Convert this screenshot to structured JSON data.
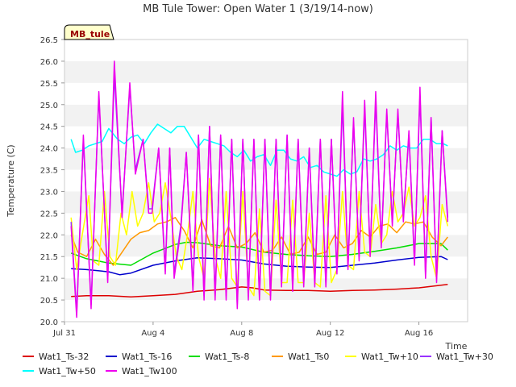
{
  "chart_data": {
    "type": "line",
    "title": "MB Tule Tower: Open Water 1 (3/19/14-now)",
    "xlabel": "Time",
    "ylabel": "Temperature (C)",
    "ylim": [
      20.0,
      26.5
    ],
    "xlim": [
      0,
      18.2
    ],
    "x_unit": "days since Jul 31",
    "x_ticks": [
      0,
      4,
      8,
      12,
      16
    ],
    "x_tick_labels": [
      "Jul 31",
      "Aug 4",
      "Aug 8",
      "Aug 12",
      "Aug 16"
    ],
    "y_ticks": [
      20.0,
      20.5,
      21.0,
      21.5,
      22.0,
      22.5,
      23.0,
      23.5,
      24.0,
      24.5,
      25.0,
      25.5,
      26.0,
      26.5
    ],
    "y_tick_labels": [
      "20.0",
      "20.5",
      "21.0",
      "21.5",
      "22.0",
      "22.5",
      "23.0",
      "23.5",
      "24.0",
      "24.5",
      "25.0",
      "25.5",
      "26.0",
      "26.5"
    ],
    "annotation": "MB_tule",
    "grid": "horizontal alternating bands",
    "legend_position": "bottom",
    "series": [
      {
        "name": "Wat1_Ts-32",
        "color": "#dd0000",
        "x": [
          0.3,
          1,
          2,
          3,
          4,
          5,
          6,
          7,
          8,
          8.5,
          9,
          10,
          11,
          12,
          13,
          14,
          15,
          16,
          17,
          17.3
        ],
        "y": [
          20.58,
          20.6,
          20.6,
          20.57,
          20.6,
          20.63,
          20.7,
          20.74,
          20.8,
          20.78,
          20.73,
          20.72,
          20.72,
          20.7,
          20.72,
          20.73,
          20.75,
          20.78,
          20.84,
          20.86
        ]
      },
      {
        "name": "Wat1_Ts-16",
        "color": "#0000cc",
        "x": [
          0.3,
          1,
          2,
          2.5,
          3,
          4,
          5,
          6,
          7,
          8,
          9,
          10,
          11,
          12,
          13,
          14,
          15,
          16,
          17,
          17.3
        ],
        "y": [
          21.22,
          21.2,
          21.15,
          21.08,
          21.12,
          21.3,
          21.4,
          21.47,
          21.45,
          21.42,
          21.33,
          21.28,
          21.26,
          21.25,
          21.3,
          21.35,
          21.42,
          21.48,
          21.5,
          21.43
        ]
      },
      {
        "name": "Wat1_Ts-8",
        "color": "#00dd00",
        "x": [
          0.3,
          1,
          2,
          3,
          4,
          5,
          5.5,
          6,
          7,
          8,
          9,
          10,
          11,
          12,
          13,
          14,
          15,
          16,
          17,
          17.3
        ],
        "y": [
          21.58,
          21.45,
          21.35,
          21.3,
          21.58,
          21.78,
          21.83,
          21.82,
          21.75,
          21.72,
          21.6,
          21.55,
          21.52,
          21.5,
          21.55,
          21.62,
          21.7,
          21.8,
          21.8,
          21.65
        ]
      },
      {
        "name": "Wat1_Ts0",
        "color": "#ff9900",
        "x": [
          0.3,
          0.6,
          1,
          1.4,
          1.8,
          2.2,
          2.6,
          3,
          3.4,
          3.8,
          4.2,
          4.6,
          5,
          5.4,
          5.8,
          6.2,
          6.6,
          7,
          7.4,
          7.8,
          8.2,
          8.6,
          9,
          9.4,
          9.8,
          10.2,
          10.6,
          11,
          11.4,
          11.8,
          12.2,
          12.6,
          13,
          13.4,
          13.8,
          14.2,
          14.6,
          15,
          15.4,
          15.8,
          16.2,
          16.6,
          17,
          17.3
        ],
        "y": [
          22.0,
          21.6,
          21.5,
          21.9,
          21.55,
          21.3,
          21.6,
          21.9,
          22.05,
          22.1,
          22.25,
          22.3,
          22.4,
          22.1,
          21.7,
          22.35,
          21.75,
          21.7,
          22.2,
          21.7,
          21.8,
          22.05,
          21.6,
          21.65,
          21.95,
          21.55,
          21.6,
          21.95,
          21.55,
          21.6,
          22.0,
          21.7,
          21.8,
          22.1,
          21.95,
          22.2,
          22.25,
          22.05,
          22.3,
          22.25,
          22.3,
          21.95,
          21.75,
          21.95
        ]
      },
      {
        "name": "Wat1_Tw+10",
        "color": "#ffff00",
        "x": [
          0.3,
          0.55,
          0.8,
          1.1,
          1.3,
          1.55,
          1.8,
          2.05,
          2.3,
          2.55,
          2.8,
          3.05,
          3.3,
          3.55,
          3.8,
          4.05,
          4.3,
          4.55,
          4.8,
          5.05,
          5.3,
          5.55,
          5.8,
          6.05,
          6.3,
          6.55,
          6.8,
          7.05,
          7.3,
          7.55,
          7.8,
          8.05,
          8.3,
          8.55,
          8.8,
          9.05,
          9.3,
          9.55,
          9.8,
          10.05,
          10.3,
          10.55,
          10.8,
          11.05,
          11.3,
          11.55,
          11.8,
          12.05,
          12.3,
          12.55,
          12.8,
          13.05,
          13.3,
          13.55,
          13.8,
          14.05,
          14.3,
          14.55,
          14.8,
          15.05,
          15.3,
          15.55,
          15.8,
          16.05,
          16.3,
          16.55,
          16.8,
          17.05,
          17.3
        ],
        "y": [
          22.4,
          21.2,
          22.0,
          22.9,
          21.4,
          21.3,
          23.0,
          21.5,
          21.3,
          22.5,
          22.0,
          23.0,
          22.2,
          22.5,
          23.2,
          22.3,
          22.5,
          23.2,
          22.4,
          21.5,
          21.2,
          22.0,
          23.0,
          21.5,
          21.0,
          23.3,
          21.5,
          21.0,
          23.0,
          21.0,
          20.8,
          23.0,
          20.8,
          20.6,
          22.6,
          20.7,
          20.6,
          22.8,
          20.9,
          20.9,
          22.8,
          20.9,
          20.9,
          22.5,
          20.9,
          20.8,
          22.9,
          20.9,
          21.2,
          23.0,
          21.3,
          21.2,
          23.0,
          21.6,
          21.5,
          22.7,
          21.8,
          22.0,
          23.0,
          22.3,
          22.5,
          23.1,
          22.2,
          22.4,
          22.9,
          21.5,
          21.0,
          22.7,
          22.2
        ]
      },
      {
        "name": "Wat1_Tw+30",
        "color": "#9933ff",
        "x": [
          0.3,
          0.55,
          0.85,
          1.2,
          1.55,
          1.95,
          2.25,
          2.6,
          2.95,
          3.2,
          3.55,
          3.8,
          3.95,
          4.25,
          4.55,
          4.75,
          4.95,
          5.25,
          5.5,
          5.8,
          6.05,
          6.3,
          6.55,
          6.8,
          7.05,
          7.3,
          7.55,
          7.8,
          8.05,
          8.3,
          8.55,
          8.8,
          9.05,
          9.3,
          9.55,
          9.8,
          10.05,
          10.3,
          10.55,
          10.8,
          11.05,
          11.3,
          11.55,
          11.8,
          12.05,
          12.3,
          12.55,
          12.8,
          13.05,
          13.3,
          13.55,
          13.8,
          14.05,
          14.3,
          14.55,
          14.8,
          15.05,
          15.3,
          15.55,
          15.8,
          16.05,
          16.3,
          16.55,
          16.8,
          17.05,
          17.3
        ],
        "y": [
          22.3,
          20.2,
          24.2,
          20.4,
          25.2,
          21.0,
          25.7,
          22.5,
          25.4,
          23.5,
          24.2,
          22.6,
          22.6,
          24.0,
          21.2,
          24.0,
          21.1,
          22.2,
          23.9,
          20.8,
          24.3,
          20.6,
          24.5,
          20.6,
          24.3,
          20.6,
          24.2,
          20.4,
          24.2,
          20.6,
          24.2,
          20.6,
          24.2,
          20.6,
          24.2,
          20.9,
          24.3,
          20.8,
          24.2,
          20.9,
          24.0,
          20.9,
          24.2,
          20.9,
          24.2,
          21.2,
          25.0,
          21.3,
          24.6,
          21.5,
          24.9,
          21.6,
          25.1,
          21.8,
          24.8,
          22.3,
          24.8,
          22.4,
          24.3,
          21.4,
          25.2,
          21.1,
          24.7,
          21.0,
          24.4,
          22.4
        ]
      },
      {
        "name": "Wat1_Tw+50",
        "color": "#00ffff",
        "x": [
          0.3,
          0.5,
          0.8,
          1.1,
          1.4,
          1.7,
          2.0,
          2.4,
          2.7,
          3.0,
          3.3,
          3.6,
          3.9,
          4.2,
          4.5,
          4.8,
          5.1,
          5.4,
          5.7,
          6.0,
          6.3,
          6.6,
          6.9,
          7.2,
          7.5,
          7.8,
          8.1,
          8.4,
          8.7,
          9.0,
          9.3,
          9.6,
          9.9,
          10.2,
          10.5,
          10.8,
          11.1,
          11.4,
          11.7,
          12.0,
          12.3,
          12.6,
          12.9,
          13.2,
          13.5,
          13.8,
          14.1,
          14.4,
          14.7,
          15.0,
          15.3,
          15.6,
          15.9,
          16.2,
          16.5,
          16.8,
          17.1,
          17.3
        ],
        "y": [
          24.2,
          23.9,
          23.95,
          24.05,
          24.1,
          24.15,
          24.45,
          24.2,
          24.1,
          24.25,
          24.3,
          24.1,
          24.35,
          24.55,
          24.45,
          24.35,
          24.5,
          24.5,
          24.25,
          24.0,
          24.2,
          24.15,
          24.1,
          24.05,
          23.9,
          23.8,
          23.95,
          23.7,
          23.8,
          23.85,
          23.6,
          23.95,
          23.95,
          23.75,
          23.7,
          23.8,
          23.55,
          23.6,
          23.45,
          23.4,
          23.35,
          23.5,
          23.4,
          23.45,
          23.75,
          23.7,
          23.75,
          23.85,
          24.05,
          23.95,
          24.05,
          24.0,
          24.0,
          24.2,
          24.2,
          24.1,
          24.1,
          24.05
        ]
      },
      {
        "name": "Wat1_Tw100",
        "color": "#ee00ee",
        "x": [
          0.3,
          0.55,
          0.85,
          1.2,
          1.55,
          1.95,
          2.25,
          2.6,
          2.95,
          3.2,
          3.55,
          3.8,
          3.95,
          4.25,
          4.55,
          4.75,
          4.95,
          5.25,
          5.5,
          5.8,
          6.05,
          6.3,
          6.55,
          6.8,
          7.05,
          7.3,
          7.55,
          7.8,
          8.05,
          8.3,
          8.55,
          8.8,
          9.05,
          9.3,
          9.55,
          9.8,
          10.05,
          10.3,
          10.55,
          10.8,
          11.05,
          11.3,
          11.55,
          11.8,
          12.05,
          12.3,
          12.55,
          12.8,
          13.05,
          13.3,
          13.55,
          13.8,
          14.05,
          14.3,
          14.55,
          14.8,
          15.05,
          15.3,
          15.55,
          15.8,
          16.05,
          16.3,
          16.55,
          16.8,
          17.05,
          17.3
        ],
        "y": [
          22.2,
          20.1,
          24.3,
          20.3,
          25.3,
          20.9,
          26.0,
          22.4,
          25.5,
          23.4,
          24.2,
          22.5,
          22.5,
          24.0,
          21.1,
          24.0,
          21.0,
          22.1,
          23.9,
          20.7,
          24.3,
          20.5,
          24.5,
          20.5,
          24.3,
          20.5,
          24.2,
          20.3,
          24.2,
          20.5,
          24.2,
          20.5,
          24.2,
          20.5,
          24.2,
          20.8,
          24.3,
          20.7,
          24.2,
          20.8,
          24.0,
          20.8,
          24.2,
          20.8,
          24.2,
          21.1,
          25.3,
          21.2,
          24.7,
          21.4,
          25.1,
          21.5,
          25.3,
          21.7,
          24.9,
          22.2,
          24.9,
          22.3,
          24.4,
          21.3,
          25.4,
          21.0,
          24.7,
          20.9,
          24.4,
          22.3
        ]
      }
    ]
  }
}
